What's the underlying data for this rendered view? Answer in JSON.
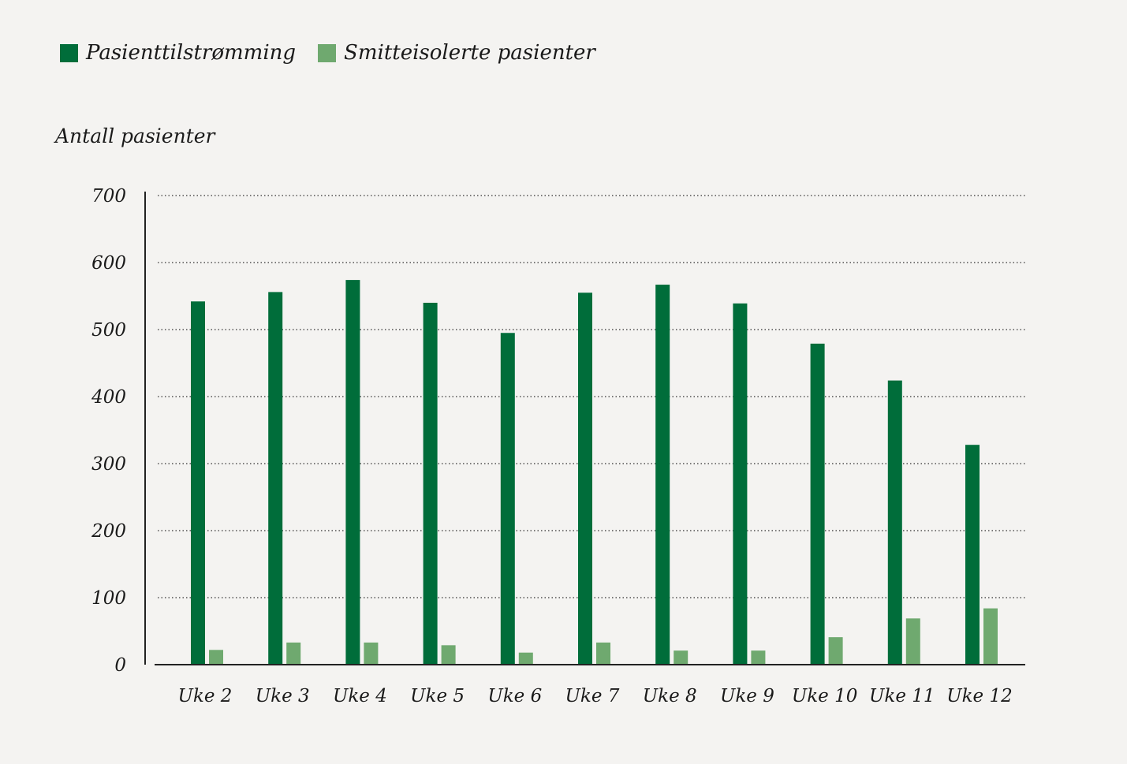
{
  "chart_data": {
    "type": "bar",
    "title": "",
    "xlabel": "",
    "ylabel": "Antall pasienter",
    "ylim": [
      0,
      700
    ],
    "yticks": [
      0,
      100,
      200,
      300,
      400,
      500,
      600,
      700
    ],
    "grid": true,
    "legend_placement": "top-left",
    "categories": [
      "Uke 2",
      "Uke 3",
      "Uke 4",
      "Uke 5",
      "Uke 6",
      "Uke 7",
      "Uke 8",
      "Uke 9",
      "Uke 10",
      "Uke 11",
      "Uke 12"
    ],
    "series": [
      {
        "name": "Pasienttilstrømming",
        "color": "#006d3a",
        "values": [
          542,
          556,
          574,
          540,
          495,
          555,
          567,
          539,
          479,
          424,
          328
        ]
      },
      {
        "name": "Smitteisolerte pasienter",
        "color": "#6fa96f",
        "values": [
          22,
          33,
          33,
          29,
          18,
          33,
          21,
          21,
          41,
          69,
          84
        ]
      }
    ]
  }
}
